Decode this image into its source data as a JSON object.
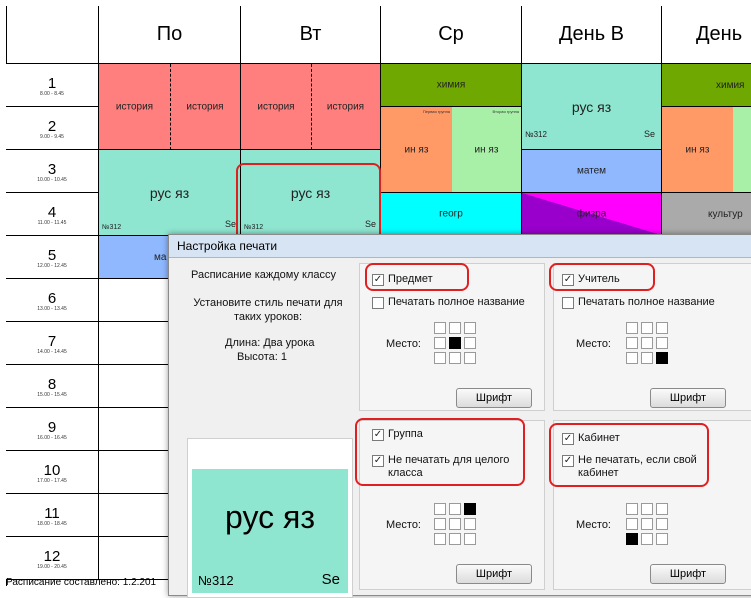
{
  "days": [
    "По",
    "Вт",
    "Ср",
    "День В",
    "День"
  ],
  "periods": [
    {
      "num": "1",
      "time": "8.00 - 8.45"
    },
    {
      "num": "2",
      "time": "9.00 - 9.45"
    },
    {
      "num": "3",
      "time": "10.00 - 10.45"
    },
    {
      "num": "4",
      "time": "11.00 - 11.45"
    },
    {
      "num": "5",
      "time": "12.00 - 12.45"
    },
    {
      "num": "6",
      "time": "13.00 - 13.45"
    },
    {
      "num": "7",
      "time": "14.00 - 14.45"
    },
    {
      "num": "8",
      "time": "15.00 - 15.45"
    },
    {
      "num": "9",
      "time": "16.00 - 16.45"
    },
    {
      "num": "10",
      "time": "17.00 - 17.45"
    },
    {
      "num": "11",
      "time": "18.00 - 18.45"
    },
    {
      "num": "12",
      "time": "19.00 - 20.45"
    }
  ],
  "lessons": {
    "history": "история",
    "chemistry": "химия",
    "rus": "рус яз",
    "inyaz": "ин яз",
    "math": "матем",
    "geo": "геогр",
    "phys": "физра",
    "culture": "культур",
    "ma": "ма",
    "room": "№312",
    "teacher": "Se",
    "group1": "Первая группа",
    "group2": "Вторая группа"
  },
  "colors": {
    "history": "#ff7f7f",
    "rus": "#8fe6d0",
    "chemistry": "#6fa800",
    "inyaz_a": "#ff9966",
    "inyaz_b": "#a8f0a8",
    "math": "#8fb8ff",
    "geo": "#00ffff",
    "phys_a": "#9900cc",
    "phys_b": "#ff00ff",
    "culture": "#aaaaaa",
    "highlight": "#e02020"
  },
  "footer": "Расписание составлено: 1.2.201",
  "dialog": {
    "title": "Настройка печати",
    "class_label": "Расписание каждому классу",
    "style_label": "Установите стиль печати для таких уроков:",
    "length": "Длина: Два урока",
    "height": "Высота: 1",
    "preview_subject": "рус яз",
    "preview_room": "№312",
    "preview_teacher": "Se",
    "subject": {
      "label": "Предмет",
      "full": "Печатать полное название",
      "place": "Место:",
      "font": "Шрифт"
    },
    "teacher": {
      "label": "Учитель",
      "full": "Печатать полное название",
      "place": "Место:",
      "font": "Шрифт"
    },
    "group": {
      "label": "Группа",
      "no_print": "Не печатать для целого класса",
      "place": "Место:",
      "font": "Шрифт"
    },
    "cabinet": {
      "label": "Кабинет",
      "no_print": "Не печатать, если свой кабинет",
      "place": "Место:",
      "font": "Шрифт"
    }
  }
}
